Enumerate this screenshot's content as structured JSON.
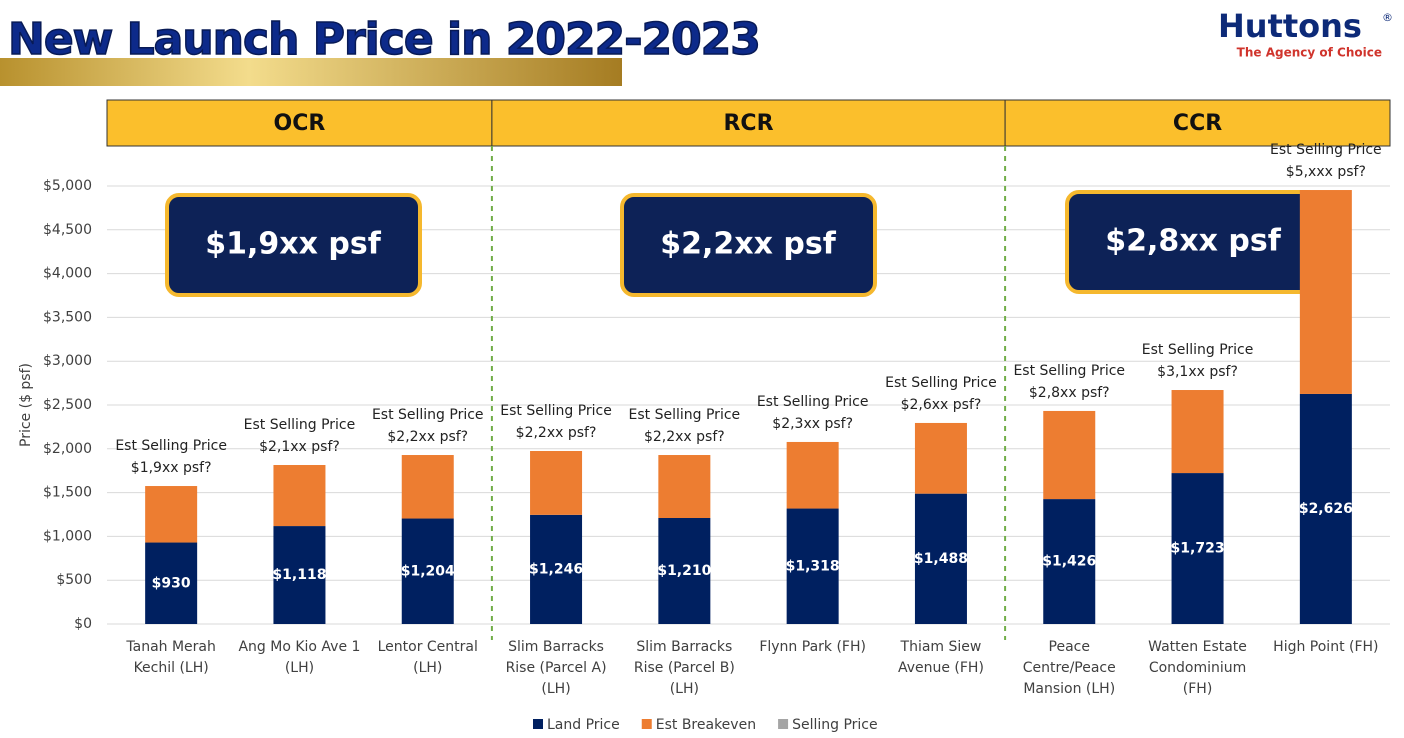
{
  "logo": {
    "name": "Huttons",
    "mark": "®",
    "tagline": "The Agency of Choice"
  },
  "chart_data": {
    "type": "stacked_bar",
    "title": "New Launch Price in 2022-2023",
    "y_label": "Price ($ psf)",
    "regions": [
      {
        "name": "OCR",
        "label": "$1,9xx psf"
      },
      {
        "name": "RCR",
        "label": "$2,2xx psf"
      },
      {
        "name": "CCR",
        "label": "$2,8xx psf"
      }
    ],
    "categories": [
      [
        "Tanah Merah",
        "Kechil (LH)"
      ],
      [
        "Ang Mo Kio Ave 1",
        "(LH)"
      ],
      [
        "Lentor Central",
        "(LH)"
      ],
      [
        "Slim Barracks",
        "Rise (Parcel A)",
        "(LH)"
      ],
      [
        "Slim Barracks",
        "Rise (Parcel B)",
        "(LH)"
      ],
      [
        "Flynn Park (FH)"
      ],
      [
        "Thiam Siew",
        "Avenue (FH)"
      ],
      [
        "Peace",
        "Centre/Peace",
        "Mansion (LH)"
      ],
      [
        "Watten Estate",
        "Condominium",
        "(FH)"
      ],
      [
        "High Point (FH)"
      ]
    ],
    "annotations": [
      [
        "Est Selling Price",
        "$1,9xx psf?"
      ],
      [
        "Est Selling Price",
        "$2,1xx psf?"
      ],
      [
        "Est Selling Price",
        "$2,2xx psf?"
      ],
      [
        "Est Selling Price",
        "$2,2xx psf?"
      ],
      [
        "Est Selling Price",
        "$2,2xx psf?"
      ],
      [
        "Est Selling Price",
        "$2,3xx psf?"
      ],
      [
        "Est Selling Price",
        "$2,6xx psf?"
      ],
      [
        "Est Selling Price",
        "$2,8xx psf?"
      ],
      [
        "Est Selling Price",
        "$3,1xx psf?"
      ],
      [
        "Est Selling Price",
        "$5,xxx psf?"
      ]
    ],
    "series": [
      {
        "name": "Land Price",
        "color": "#002060",
        "values": [
          930,
          1118,
          1204,
          1246,
          1210,
          1318,
          1488,
          1426,
          1723,
          2626
        ],
        "value_labels": [
          "$930",
          "$1,118",
          "$1,204",
          "$1,246",
          "$1,210",
          "$1,318",
          "$1,488",
          "$1,426",
          "$1,723",
          "$2,626"
        ]
      },
      {
        "name": "Est Breakeven",
        "color": "#ed7d31",
        "values": [
          645,
          697,
          725,
          729,
          719,
          760,
          807,
          1006,
          948,
          2328
        ]
      },
      {
        "name": "Selling Price",
        "color": "#a5a5a5",
        "values": [
          null,
          null,
          null,
          null,
          null,
          null,
          null,
          null,
          null,
          null
        ]
      }
    ],
    "ylim": [
      0,
      5000
    ],
    "yticks": [
      {
        "value": 0,
        "label": "$0"
      },
      {
        "value": 500,
        "label": "$500"
      },
      {
        "value": 1000,
        "label": "$1,000"
      },
      {
        "value": 1500,
        "label": "$1,500"
      },
      {
        "value": 2000,
        "label": "$2,000"
      },
      {
        "value": 2500,
        "label": "$2,500"
      },
      {
        "value": 3000,
        "label": "$3,000"
      },
      {
        "value": 3500,
        "label": "$3,500"
      },
      {
        "value": 4000,
        "label": "$4,000"
      },
      {
        "value": 4500,
        "label": "$4,500"
      },
      {
        "value": 5000,
        "label": "$5,000"
      }
    ],
    "grid": true
  }
}
